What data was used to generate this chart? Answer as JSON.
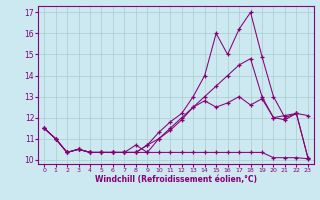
{
  "xlabel": "Windchill (Refroidissement éolien,°C)",
  "bg_color": "#cce8f0",
  "grid_color": "#aacccc",
  "line_color": "#880077",
  "xlim": [
    -0.5,
    23.5
  ],
  "ylim": [
    9.8,
    17.3
  ],
  "yticks": [
    10,
    11,
    12,
    13,
    14,
    15,
    16,
    17
  ],
  "xticks": [
    0,
    1,
    2,
    3,
    4,
    5,
    6,
    7,
    8,
    9,
    10,
    11,
    12,
    13,
    14,
    15,
    16,
    17,
    18,
    19,
    20,
    21,
    22,
    23
  ],
  "line1_y": [
    11.5,
    11.0,
    10.35,
    10.5,
    10.35,
    10.35,
    10.35,
    10.35,
    10.35,
    10.35,
    10.35,
    10.35,
    10.35,
    10.35,
    10.35,
    10.35,
    10.35,
    10.35,
    10.35,
    10.35,
    10.1,
    10.1,
    10.1,
    10.05
  ],
  "line2_y": [
    11.5,
    11.0,
    10.35,
    10.5,
    10.35,
    10.35,
    10.35,
    10.35,
    10.35,
    10.7,
    11.0,
    11.4,
    11.9,
    12.5,
    12.8,
    12.5,
    12.7,
    13.0,
    12.6,
    12.9,
    12.0,
    12.1,
    12.2,
    12.1
  ],
  "line3_y": [
    11.5,
    11.0,
    10.35,
    10.5,
    10.35,
    10.35,
    10.35,
    10.35,
    10.35,
    10.7,
    11.3,
    11.8,
    12.2,
    13.0,
    14.0,
    16.0,
    15.0,
    16.2,
    17.0,
    14.9,
    13.0,
    12.0,
    12.2,
    10.1
  ],
  "line4_y": [
    11.5,
    11.0,
    10.35,
    10.5,
    10.35,
    10.35,
    10.35,
    10.35,
    10.7,
    10.35,
    11.0,
    11.5,
    12.0,
    12.5,
    13.0,
    13.5,
    14.0,
    14.5,
    14.8,
    13.0,
    12.0,
    11.9,
    12.2,
    10.1
  ]
}
